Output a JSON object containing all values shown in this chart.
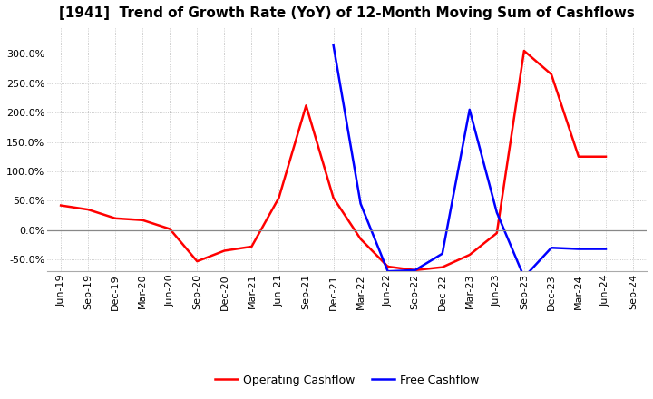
{
  "title": "[1941]  Trend of Growth Rate (YoY) of 12-Month Moving Sum of Cashflows",
  "x_labels": [
    "Jun-19",
    "Sep-19",
    "Dec-19",
    "Mar-20",
    "Jun-20",
    "Sep-20",
    "Dec-20",
    "Mar-21",
    "Jun-21",
    "Sep-21",
    "Dec-21",
    "Mar-22",
    "Jun-22",
    "Sep-22",
    "Dec-22",
    "Mar-23",
    "Jun-23",
    "Sep-23",
    "Dec-23",
    "Mar-24",
    "Jun-24",
    "Sep-24"
  ],
  "operating_cashflow": [
    0.42,
    0.35,
    0.2,
    0.17,
    0.02,
    -0.53,
    -0.35,
    -0.28,
    0.55,
    2.12,
    0.55,
    -0.15,
    -0.62,
    -0.68,
    -0.63,
    -0.42,
    -0.05,
    3.05,
    2.65,
    1.25,
    1.25,
    null
  ],
  "free_cashflow": [
    null,
    null,
    null,
    null,
    null,
    null,
    null,
    null,
    null,
    null,
    3.15,
    0.45,
    -0.7,
    -0.68,
    -0.4,
    2.05,
    0.3,
    -0.8,
    -0.3,
    -0.32,
    -0.32,
    null
  ],
  "operating_color": "#FF0000",
  "free_color": "#0000FF",
  "ylim_min": -0.7,
  "ylim_max": 3.45,
  "ytick_values": [
    -0.5,
    0.0,
    0.5,
    1.0,
    1.5,
    2.0,
    2.5,
    3.0
  ],
  "ytick_labels": [
    "-50.0%",
    "0.0%",
    "50.0%",
    "100.0%",
    "150.0%",
    "200.0%",
    "250.0%",
    "300.0%"
  ],
  "background_color": "#FFFFFF",
  "grid_color": "#AAAAAA",
  "legend_op": "Operating Cashflow",
  "legend_fc": "Free Cashflow",
  "title_fontsize": 11,
  "tick_fontsize": 8,
  "legend_fontsize": 9,
  "linewidth": 1.8
}
